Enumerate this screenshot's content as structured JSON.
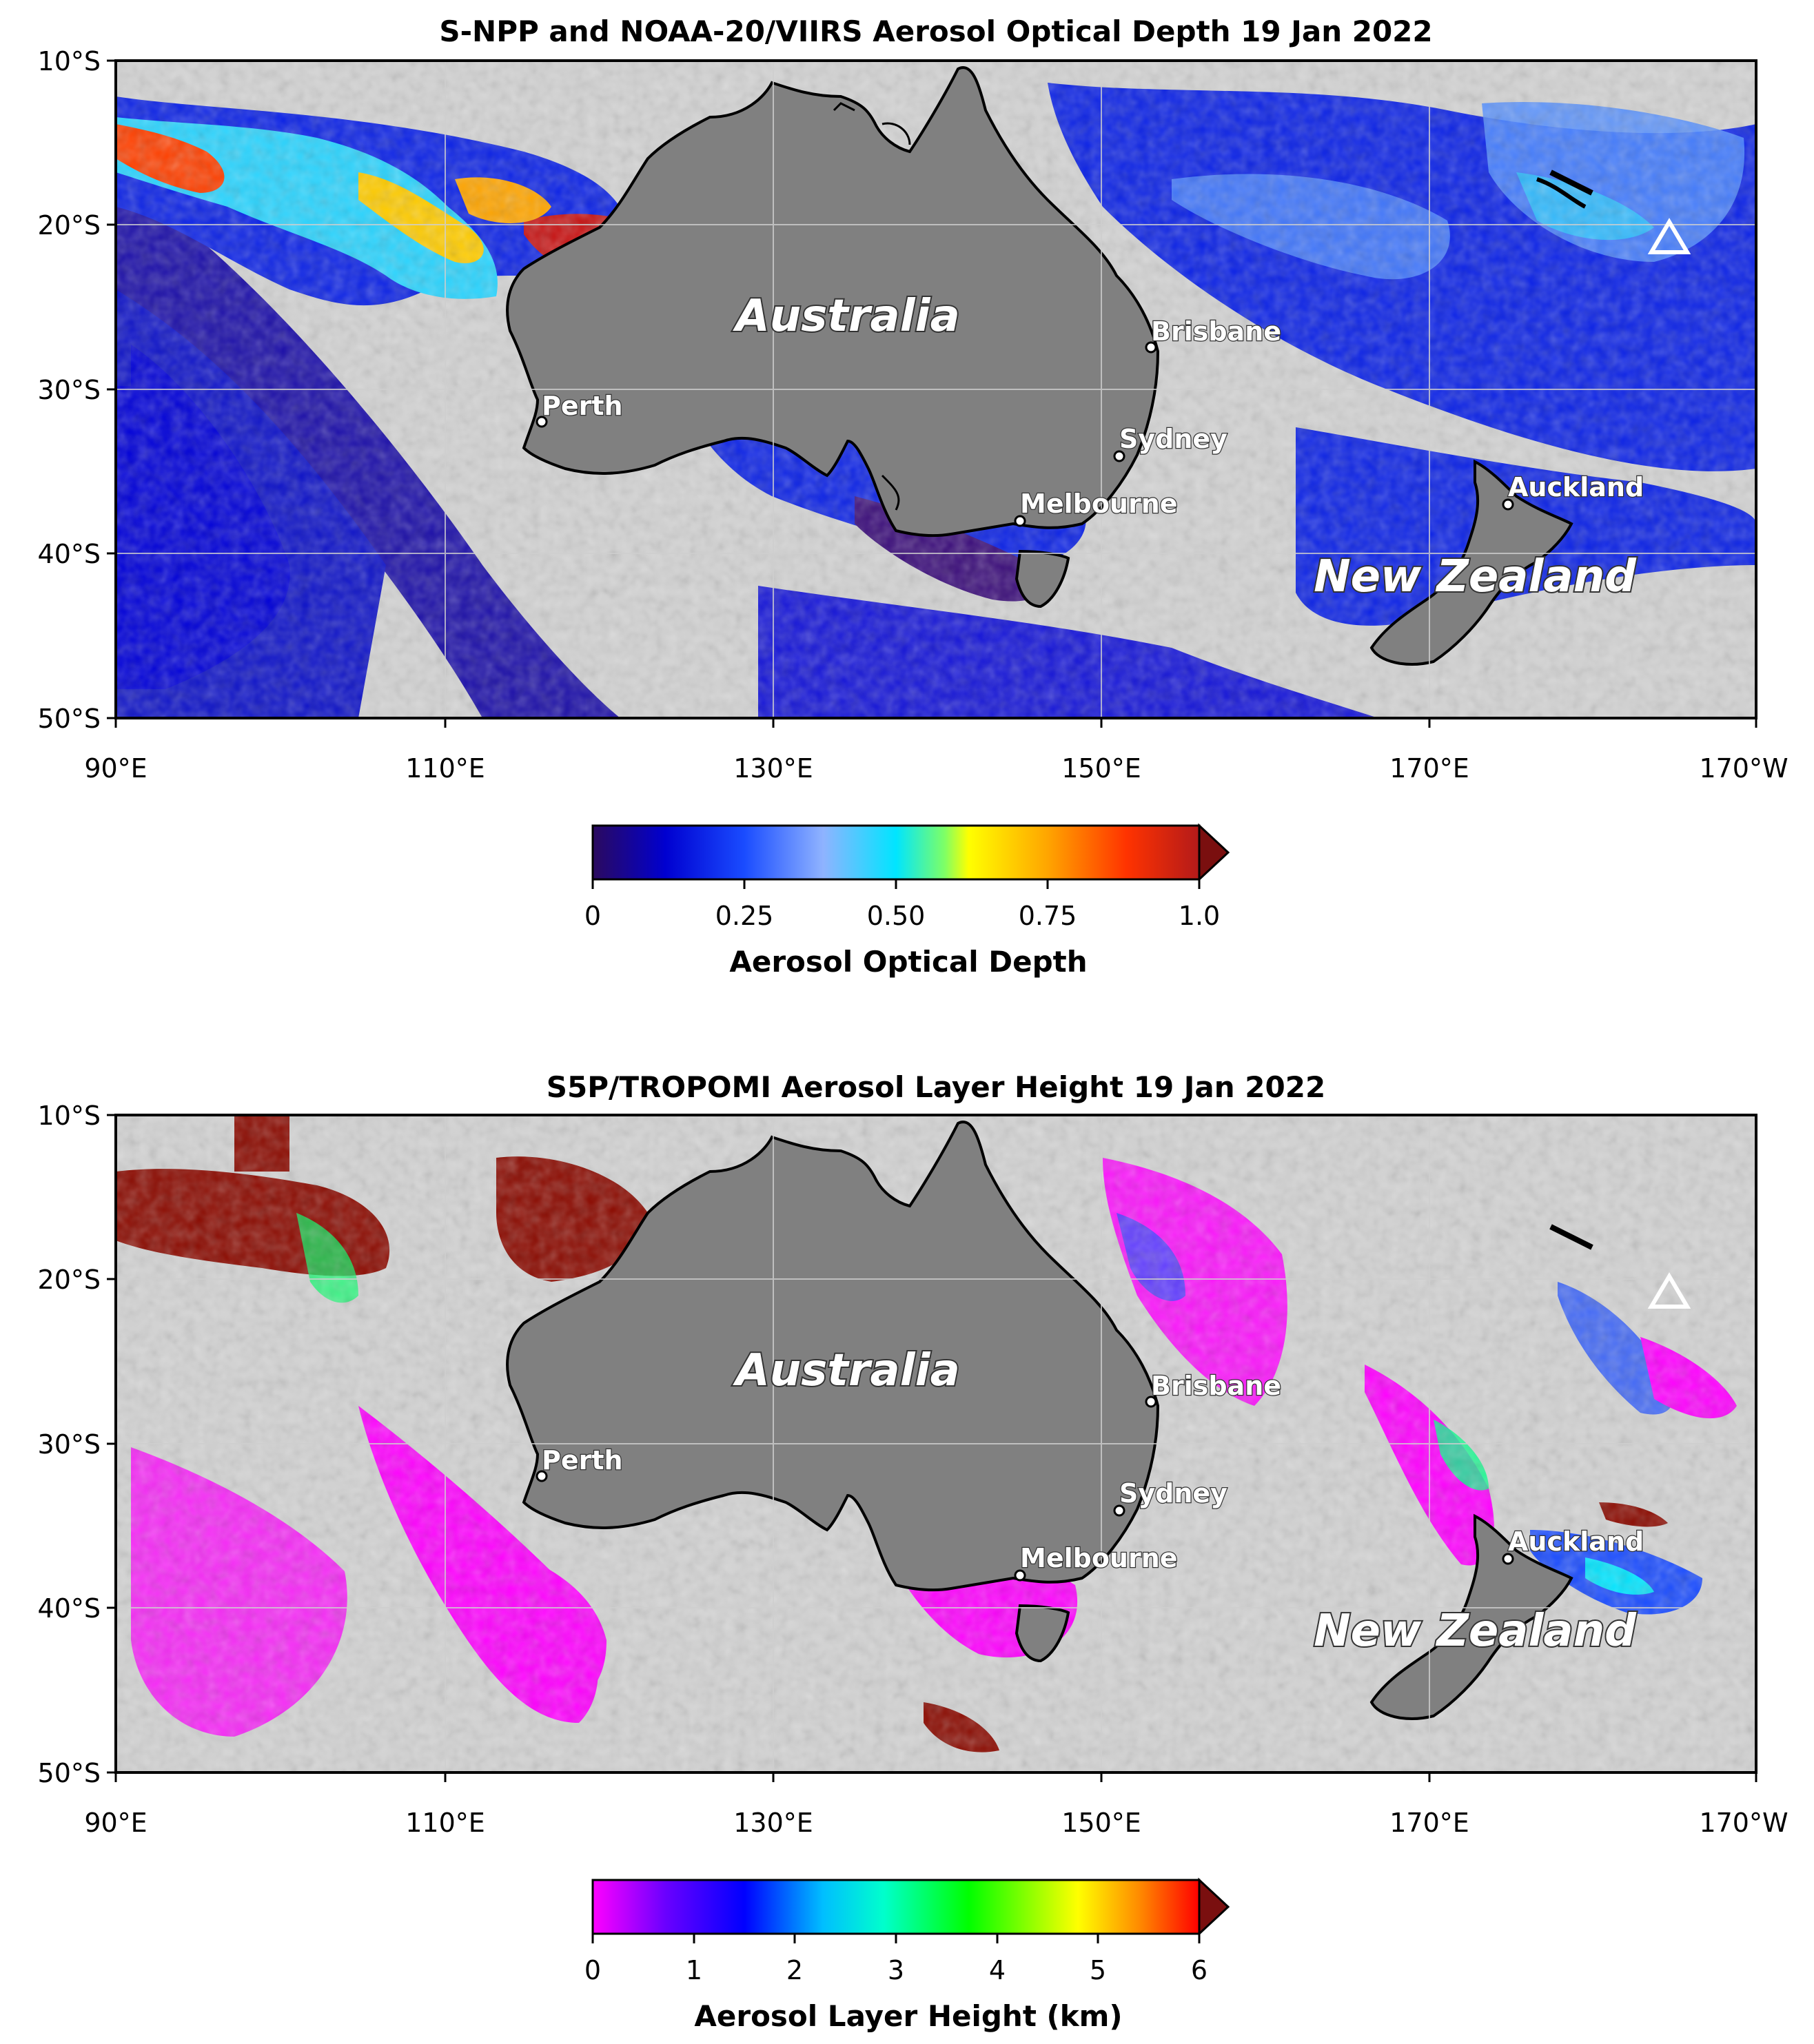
{
  "panels": [
    {
      "id": "aod",
      "title": "S-NPP and NOAA-20/VIIRS Aerosol Optical Depth  19 Jan 2022",
      "lat_labels": [
        "10°S",
        "20°S",
        "30°S",
        "40°S",
        "50°S"
      ],
      "lon_labels": [
        "90°E",
        "110°E",
        "130°E",
        "150°E",
        "170°E",
        "170°W"
      ],
      "colorbar": {
        "label": "Aerosol Optical Depth",
        "ticks": [
          "0",
          "0.25",
          "0.50",
          "0.75",
          "1.0"
        ],
        "range": [
          0,
          1.0
        ],
        "extend": "max",
        "colors": [
          "#2b0a5e",
          "#0000d0",
          "#1a4cff",
          "#8fb3ff",
          "#00e5ff",
          "#7dff66",
          "#ffff00",
          "#ffa500",
          "#ff3300",
          "#b31a1a"
        ]
      },
      "places": [
        {
          "name": "Brisbane"
        },
        {
          "name": "Perth"
        },
        {
          "name": "Sydney"
        },
        {
          "name": "Melbourne"
        },
        {
          "name": "Auckland"
        }
      ],
      "regions": [
        "Australia",
        "New Zealand"
      ]
    },
    {
      "id": "alh",
      "title": "S5P/TROPOMI Aerosol Layer Height  19 Jan 2022",
      "lat_labels": [
        "10°S",
        "20°S",
        "30°S",
        "40°S",
        "50°S"
      ],
      "lon_labels": [
        "90°E",
        "110°E",
        "130°E",
        "150°E",
        "170°E",
        "170°W"
      ],
      "colorbar": {
        "label": "Aerosol Layer Height (km)",
        "ticks": [
          "0",
          "1",
          "2",
          "3",
          "4",
          "5",
          "6"
        ],
        "range": [
          0,
          6
        ],
        "extend": "max",
        "colors": [
          "#ff00ff",
          "#6a00ff",
          "#0000ff",
          "#00bfff",
          "#00ffcc",
          "#00ff00",
          "#ffff00",
          "#ff8c00",
          "#ff0000"
        ]
      },
      "places": [
        {
          "name": "Brisbane"
        },
        {
          "name": "Perth"
        },
        {
          "name": "Sydney"
        },
        {
          "name": "Melbourne"
        },
        {
          "name": "Auckland"
        }
      ],
      "regions": [
        "Australia",
        "New Zealand"
      ]
    }
  ],
  "colors": {
    "background_cloud": "#d3d3d3",
    "land": "#808080",
    "coastline": "#000000",
    "volcano_marker": "#ffffff"
  },
  "icons": [
    "volcano-marker-icon"
  ]
}
